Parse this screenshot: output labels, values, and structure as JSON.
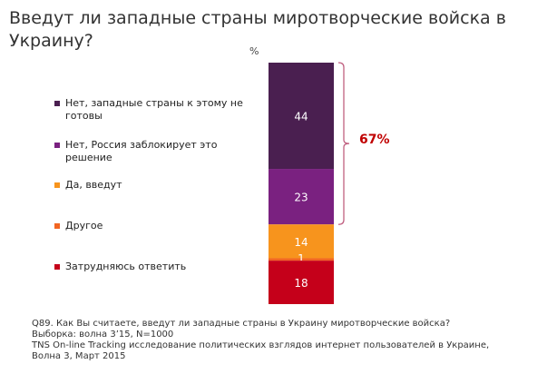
{
  "chart_data": {
    "type": "bar",
    "stacked": true,
    "title": "Введут ли западные страны миротворческие войска в Украину?",
    "unit_label": "%",
    "categories": [
      "Нет, западные страны к этому не готовы",
      "Нет, Россия заблокирует это решение",
      "Да, введут",
      "Другое",
      "Затрудняюсь ответить"
    ],
    "values": [
      44,
      23,
      14,
      1,
      18
    ],
    "colors": [
      "#4a1f50",
      "#7a2180",
      "#f7941d",
      "#f26522",
      "#c5001a"
    ],
    "bracket": {
      "label": "67%",
      "covers": [
        0,
        1
      ],
      "color": "#c06080"
    }
  },
  "footer": [
    "Q89. Как Вы считаете, введут ли западные страны в Украину миротворческие войска?",
    "Выборка: волна 3’15, N=1000",
    "TNS On-line Tracking исследование политических взглядов интернет пользователей в Украине,",
    "Волна 3, Март 2015"
  ]
}
